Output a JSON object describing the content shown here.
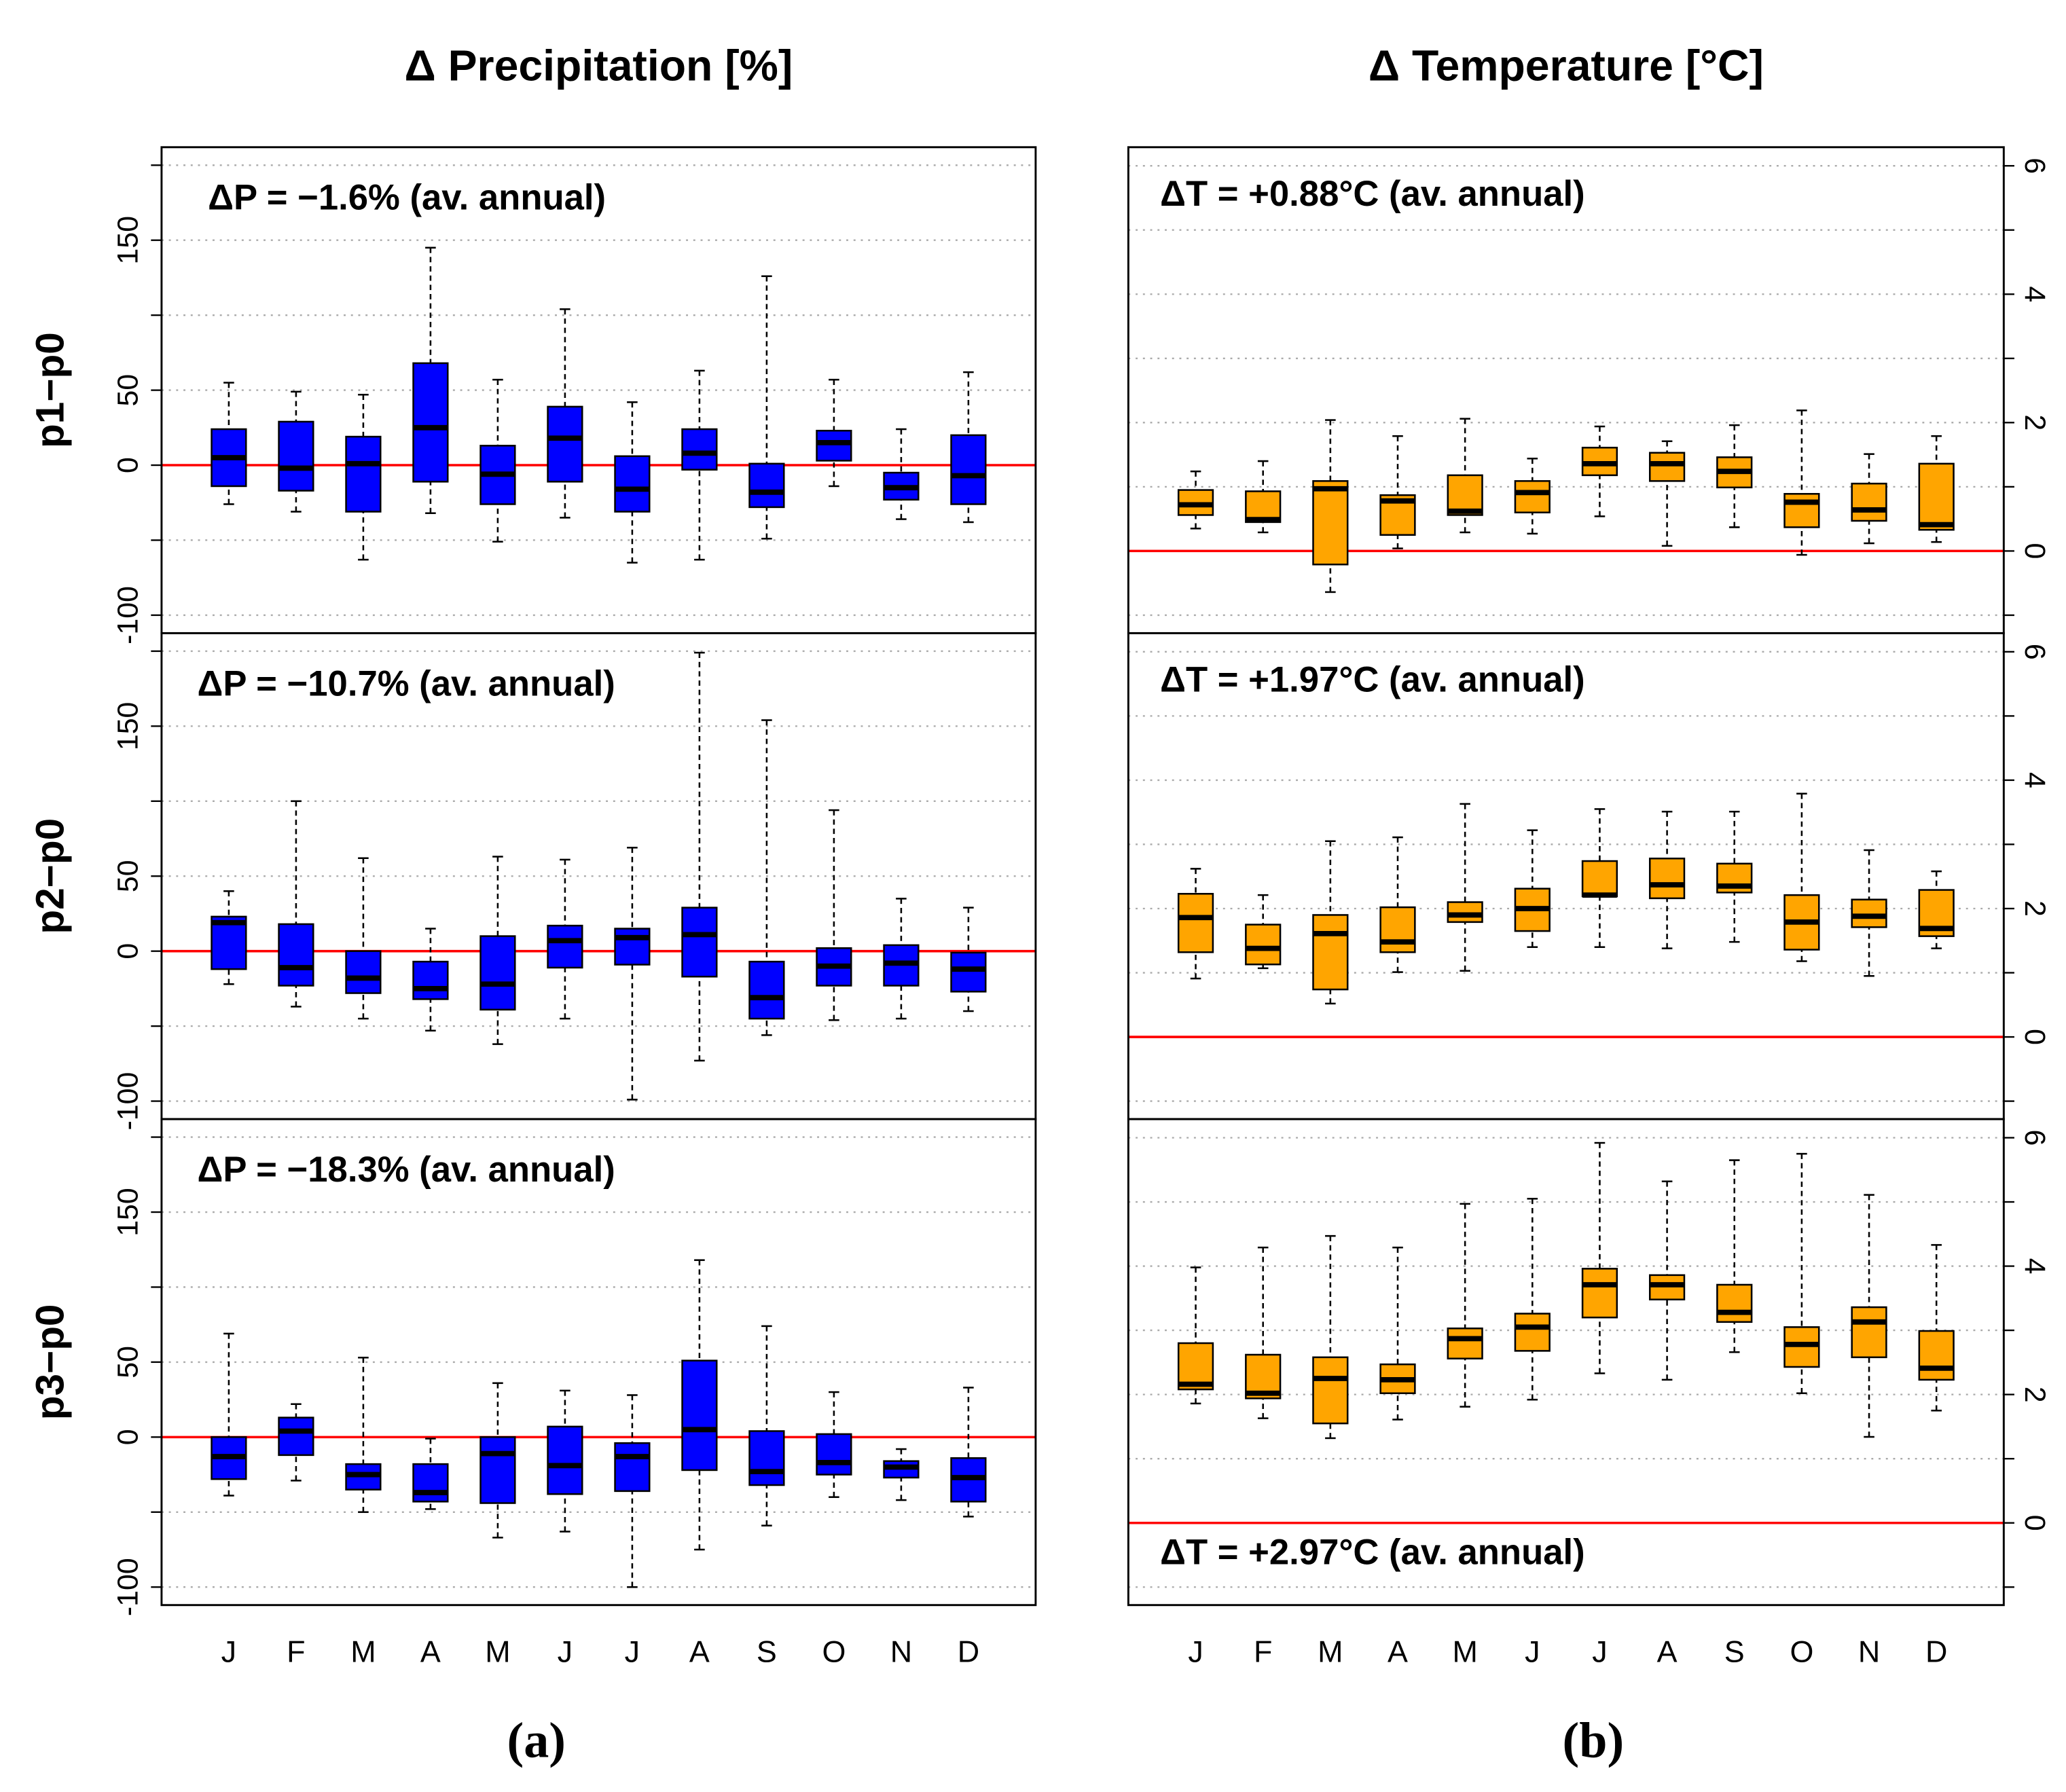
{
  "chart_data": [
    {
      "type": "box",
      "title": "Δ Precipitation  [%]",
      "ylabel": "p1−p0",
      "annotation": "ΔP = −1.6% (av. annual)",
      "annotation_position": "top",
      "yaxis_side": "left",
      "ylim": [
        -112,
        212
      ],
      "yticks": [
        -100,
        0,
        50,
        150
      ],
      "gridlines": [
        -100,
        -50,
        0,
        50,
        100,
        150,
        200
      ],
      "hline": 0,
      "hline_color": "#ff0000",
      "series": [
        {
          "color": "#0000ff",
          "high": [
            55,
            49,
            47,
            145,
            57,
            104,
            42,
            63,
            126,
            57,
            24,
            62
          ],
          "q3": [
            24,
            29,
            19,
            68,
            13,
            39,
            6,
            24,
            1,
            23,
            -5,
            20
          ],
          "median": [
            5,
            -2,
            1,
            25,
            -6,
            18,
            -16,
            8,
            -18,
            15,
            -15,
            -7
          ],
          "q1": [
            -14,
            -17,
            -31,
            -11,
            -26,
            -11,
            -31,
            -3,
            -28,
            3,
            -23,
            -26
          ],
          "low": [
            -26,
            -31,
            -63,
            -32,
            -51,
            -35,
            -65,
            -63,
            -49,
            -14,
            -36,
            -38
          ]
        }
      ]
    },
    {
      "type": "box",
      "ylabel": "p2−p0",
      "annotation": "ΔP = −10.7% (av. annual)",
      "annotation_position": "top",
      "yaxis_side": "left",
      "ylim": [
        -112,
        212
      ],
      "yticks": [
        -100,
        0,
        50,
        150
      ],
      "gridlines": [
        -100,
        -50,
        0,
        50,
        100,
        150,
        200
      ],
      "hline": 0,
      "hline_color": "#ff0000",
      "series": [
        {
          "color": "#0000ff",
          "high": [
            40,
            100,
            62,
            15,
            63,
            61,
            69,
            199,
            154,
            94,
            35,
            29
          ],
          "q3": [
            23,
            18,
            0,
            -7,
            10,
            17,
            15,
            29,
            -7,
            2,
            4,
            -1
          ],
          "median": [
            19,
            -11,
            -18,
            -25,
            -22,
            7,
            9,
            11,
            -31,
            -10,
            -8,
            -12
          ],
          "q1": [
            -12,
            -23,
            -28,
            -32,
            -39,
            -11,
            -9,
            -17,
            -45,
            -23,
            -23,
            -27
          ],
          "low": [
            -22,
            -37,
            -45,
            -53,
            -62,
            -45,
            -99,
            -73,
            -56,
            -46,
            -45,
            -40
          ]
        }
      ]
    },
    {
      "type": "box",
      "ylabel": "p3−p0",
      "annotation": "ΔP = −18.3% (av. annual)",
      "annotation_position": "top",
      "yaxis_side": "left",
      "panel_label": "(a)",
      "categories": [
        "J",
        "F",
        "M",
        "A",
        "M",
        "J",
        "J",
        "A",
        "S",
        "O",
        "N",
        "D"
      ],
      "ylim": [
        -112,
        212
      ],
      "yticks": [
        -100,
        0,
        50,
        150
      ],
      "gridlines": [
        -100,
        -50,
        0,
        50,
        100,
        150,
        200
      ],
      "hline": 0,
      "hline_color": "#ff0000",
      "series": [
        {
          "color": "#0000ff",
          "high": [
            69,
            22,
            53,
            -1,
            36,
            31,
            28,
            118,
            74,
            30,
            -8,
            33
          ],
          "q3": [
            0,
            13,
            -18,
            -18,
            0,
            7,
            -4,
            51,
            4,
            2,
            -16,
            -14
          ],
          "median": [
            -13,
            4,
            -25,
            -37,
            -11,
            -19,
            -13,
            5,
            -23,
            -17,
            -20,
            -27
          ],
          "q1": [
            -28,
            -12,
            -35,
            -43,
            -44,
            -38,
            -36,
            -22,
            -32,
            -25,
            -27,
            -43
          ],
          "low": [
            -39,
            -29,
            -50,
            -48,
            -67,
            -63,
            -100,
            -75,
            -59,
            -40,
            -42,
            -53
          ]
        }
      ]
    },
    {
      "type": "box",
      "title": "Δ Temperature  [°C]",
      "annotation": "ΔT = +0.88°C (av. annual)",
      "annotation_position": "top",
      "yaxis_side": "right",
      "ylim": [
        -1.28,
        6.29
      ],
      "yticks": [
        0,
        2,
        4,
        6
      ],
      "gridlines": [
        -1,
        0,
        1,
        2,
        3,
        4,
        5,
        6
      ],
      "hline": 0,
      "hline_color": "#ff0000",
      "series": [
        {
          "color": "#ffa500",
          "high": [
            1.24,
            1.4,
            2.04,
            1.79,
            2.06,
            1.44,
            1.94,
            1.71,
            1.96,
            2.19,
            1.51,
            1.79
          ],
          "q3": [
            0.95,
            0.93,
            1.09,
            0.87,
            1.18,
            1.09,
            1.61,
            1.53,
            1.46,
            0.89,
            1.05,
            1.36
          ],
          "median": [
            0.72,
            0.49,
            0.97,
            0.78,
            0.62,
            0.91,
            1.36,
            1.36,
            1.24,
            0.76,
            0.64,
            0.41
          ],
          "q1": [
            0.56,
            0.45,
            -0.21,
            0.25,
            0.56,
            0.6,
            1.18,
            1.09,
            0.99,
            0.37,
            0.47,
            0.33
          ],
          "low": [
            0.35,
            0.29,
            -0.64,
            0.04,
            0.29,
            0.27,
            0.54,
            0.08,
            0.37,
            -0.06,
            0.12,
            0.14
          ]
        }
      ]
    },
    {
      "type": "box",
      "annotation": "ΔT = +1.97°C (av. annual)",
      "annotation_position": "top",
      "yaxis_side": "right",
      "ylim": [
        -1.28,
        6.29
      ],
      "yticks": [
        0,
        2,
        4,
        6
      ],
      "gridlines": [
        -1,
        0,
        1,
        2,
        3,
        4,
        5,
        6
      ],
      "hline": 0,
      "hline_color": "#ff0000",
      "series": [
        {
          "color": "#ffa500",
          "high": [
            2.62,
            2.21,
            3.05,
            3.11,
            3.63,
            3.22,
            3.55,
            3.51,
            3.51,
            3.79,
            2.91,
            2.58
          ],
          "q3": [
            2.23,
            1.75,
            1.9,
            2.02,
            2.1,
            2.31,
            2.74,
            2.78,
            2.7,
            2.21,
            2.14,
            2.29
          ],
          "median": [
            1.86,
            1.38,
            1.61,
            1.48,
            1.9,
            2.0,
            2.21,
            2.37,
            2.35,
            1.79,
            1.88,
            1.69
          ],
          "q1": [
            1.32,
            1.13,
            0.74,
            1.32,
            1.79,
            1.65,
            2.19,
            2.16,
            2.25,
            1.36,
            1.71,
            1.57
          ],
          "low": [
            0.91,
            1.07,
            0.52,
            1.01,
            1.03,
            1.4,
            1.4,
            1.38,
            1.48,
            1.18,
            0.95,
            1.38
          ]
        }
      ]
    },
    {
      "type": "box",
      "annotation": "ΔT = +2.97°C (av. annual)",
      "annotation_position": "bottom",
      "yaxis_side": "right",
      "panel_label": "(b)",
      "categories": [
        "J",
        "F",
        "M",
        "A",
        "M",
        "J",
        "J",
        "A",
        "S",
        "O",
        "N",
        "D"
      ],
      "ylim": [
        -1.28,
        6.29
      ],
      "yticks": [
        0,
        2,
        4,
        6
      ],
      "gridlines": [
        -1,
        0,
        1,
        2,
        3,
        4,
        5,
        6
      ],
      "hline": 0,
      "hline_color": "#ff0000",
      "series": [
        {
          "color": "#ffa500",
          "high": [
            3.98,
            4.29,
            4.47,
            4.29,
            4.97,
            5.05,
            5.92,
            5.32,
            5.65,
            5.75,
            5.11,
            4.33
          ],
          "q3": [
            2.8,
            2.62,
            2.58,
            2.47,
            3.03,
            3.26,
            3.96,
            3.86,
            3.71,
            3.05,
            3.36,
            2.99
          ],
          "median": [
            2.16,
            2.02,
            2.25,
            2.23,
            2.87,
            3.05,
            3.71,
            3.71,
            3.28,
            2.78,
            3.13,
            2.41
          ],
          "q1": [
            2.08,
            1.94,
            1.55,
            2.02,
            2.56,
            2.68,
            3.2,
            3.48,
            3.13,
            2.43,
            2.58,
            2.23
          ],
          "low": [
            1.86,
            1.63,
            1.32,
            1.61,
            1.81,
            1.92,
            2.33,
            2.23,
            2.66,
            2.02,
            1.34,
            1.75
          ]
        }
      ]
    }
  ]
}
